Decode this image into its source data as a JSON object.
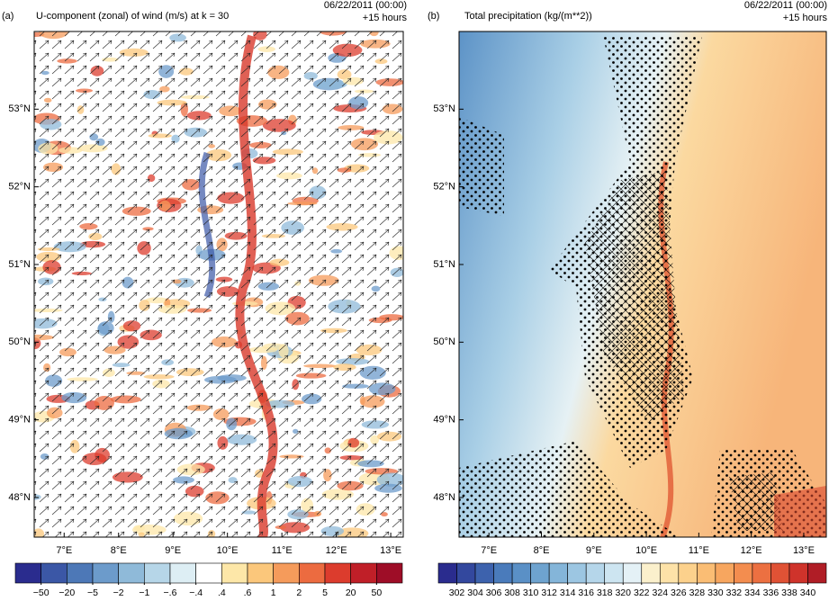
{
  "panels": [
    {
      "label": "(a)",
      "title": "U-component (zonal) of wind (m/s) at k = 30",
      "date": "06/22/2011 (00:00)",
      "lead": "+15 hours",
      "xlim": [
        6.45,
        13.23
      ],
      "ylim": [
        47.49,
        54.0
      ],
      "xticks": [
        {
          "value": 7,
          "label": "7°E"
        },
        {
          "value": 8,
          "label": "8°E"
        },
        {
          "value": 9,
          "label": "9°E"
        },
        {
          "value": 10,
          "label": "10°E"
        },
        {
          "value": 11,
          "label": "11°E"
        },
        {
          "value": 12,
          "label": "12°E"
        },
        {
          "value": 13,
          "label": "13°E"
        }
      ],
      "yticks": [
        {
          "value": 48,
          "label": "48°N"
        },
        {
          "value": 49,
          "label": "49°N"
        },
        {
          "value": 50,
          "label": "50°N"
        },
        {
          "value": 51,
          "label": "51°N"
        },
        {
          "value": 52,
          "label": "52°N"
        },
        {
          "value": 53,
          "label": "53°N"
        }
      ],
      "colorbar": {
        "ticks": [
          {
            "value": -50,
            "label": "−50"
          },
          {
            "value": -20,
            "label": "−20"
          },
          {
            "value": -5,
            "label": "−5"
          },
          {
            "value": -2,
            "label": "−2"
          },
          {
            "value": -1,
            "label": "−1"
          },
          {
            "value": -0.6,
            "label": "−.6"
          },
          {
            "value": -0.4,
            "label": "−.4"
          },
          {
            "value": 0.4,
            "label": ".4"
          },
          {
            "value": 0.6,
            "label": ".6"
          },
          1,
          2,
          5,
          20,
          50
        ],
        "colors": [
          "#2a2c8e",
          "#3b57a6",
          "#4d78b7",
          "#6c9bcb",
          "#8fbad9",
          "#b6d6e8",
          "#ddeef4",
          "#ffffff",
          "#fde7a8",
          "#fbc77b",
          "#f59b5b",
          "#ec6b40",
          "#dc3c2d",
          "#c01f28",
          "#9e0d27"
        ]
      }
    },
    {
      "label": "(b)",
      "title": "Total precipitation (kg/(m**2))",
      "date": "06/22/2011 (00:00)",
      "lead": "+15 hours",
      "xlim": [
        6.43,
        13.43
      ],
      "ylim": [
        47.49,
        54.0
      ],
      "xticks": [
        {
          "value": 7,
          "label": "7°E"
        },
        {
          "value": 8,
          "label": "8°E"
        },
        {
          "value": 9,
          "label": "9°E"
        },
        {
          "value": 10,
          "label": "10°E"
        },
        {
          "value": 11,
          "label": "11°E"
        },
        {
          "value": 12,
          "label": "12°E"
        },
        {
          "value": 13,
          "label": "13°E"
        }
      ],
      "yticks": [
        {
          "value": 48,
          "label": "48°N"
        },
        {
          "value": 49,
          "label": "49°N"
        },
        {
          "value": 50,
          "label": "50°N"
        },
        {
          "value": 51,
          "label": "51°N"
        },
        {
          "value": 52,
          "label": "52°N"
        },
        {
          "value": 53,
          "label": "53°N"
        }
      ],
      "colorbar": {
        "ticks": [
          302,
          304,
          306,
          308,
          310,
          312,
          314,
          316,
          318,
          320,
          322,
          324,
          326,
          328,
          330,
          332,
          334,
          336,
          338,
          340
        ],
        "colors": [
          "#2a2c8e",
          "#33489e",
          "#3d62ad",
          "#4a7bbb",
          "#5a90c6",
          "#6ea3cf",
          "#84b5d9",
          "#9cc6e2",
          "#b5d6ea",
          "#cde5f1",
          "#e4f1f6",
          "#fbf0cc",
          "#fde2a8",
          "#fcd18c",
          "#fabd74",
          "#f7a65f",
          "#f38d4f",
          "#ec7041",
          "#e05235",
          "#cf332b",
          "#b01d26"
        ]
      }
    }
  ]
}
